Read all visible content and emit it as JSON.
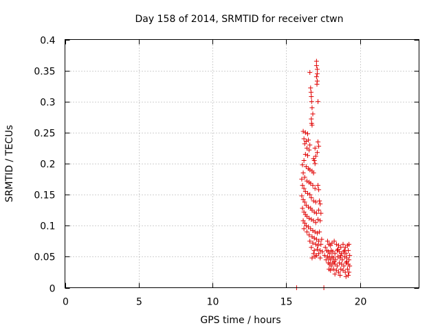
{
  "chart_data": {
    "type": "scatter",
    "title": "Day 158 of 2014, SRMTID for receiver ctwn",
    "xlabel": "GPS time / hours",
    "ylabel": "SRMTID / TECUs",
    "xlim": [
      0,
      24
    ],
    "ylim": [
      0,
      0.4
    ],
    "xticks": [
      0,
      5,
      10,
      15,
      20
    ],
    "yticks": [
      0,
      0.05,
      0.1,
      0.15,
      0.2,
      0.25,
      0.3,
      0.35,
      0.4
    ],
    "ytick_labels": [
      "0",
      "0.05",
      "0.1",
      "0.15",
      "0.2",
      "0.25",
      "0.3",
      "0.35",
      "0.4"
    ],
    "grid": true,
    "marker_color": "#e00000",
    "series": [
      {
        "name": "SRMTID",
        "marker": "plus",
        "points": [
          [
            16.6,
            0.347
          ],
          [
            17.05,
            0.365
          ],
          [
            17.05,
            0.358
          ],
          [
            17.1,
            0.352
          ],
          [
            17.1,
            0.345
          ],
          [
            17.05,
            0.34
          ],
          [
            17.1,
            0.333
          ],
          [
            17.08,
            0.328
          ],
          [
            16.65,
            0.322
          ],
          [
            16.68,
            0.315
          ],
          [
            16.7,
            0.308
          ],
          [
            16.72,
            0.3
          ],
          [
            17.15,
            0.3
          ],
          [
            16.75,
            0.29
          ],
          [
            16.8,
            0.28
          ],
          [
            16.7,
            0.272
          ],
          [
            16.72,
            0.265
          ],
          [
            16.75,
            0.262
          ],
          [
            16.15,
            0.252
          ],
          [
            16.3,
            0.25
          ],
          [
            16.45,
            0.248
          ],
          [
            16.2,
            0.24
          ],
          [
            16.5,
            0.238
          ],
          [
            16.35,
            0.236
          ],
          [
            16.25,
            0.232
          ],
          [
            16.6,
            0.23
          ],
          [
            16.4,
            0.225
          ],
          [
            16.55,
            0.222
          ],
          [
            17.15,
            0.235
          ],
          [
            17.2,
            0.228
          ],
          [
            16.95,
            0.225
          ],
          [
            17.1,
            0.218
          ],
          [
            16.3,
            0.215
          ],
          [
            16.45,
            0.213
          ],
          [
            17.0,
            0.212
          ],
          [
            16.85,
            0.208
          ],
          [
            16.9,
            0.205
          ],
          [
            16.95,
            0.2
          ],
          [
            16.2,
            0.205
          ],
          [
            16.1,
            0.198
          ],
          [
            16.35,
            0.195
          ],
          [
            16.5,
            0.192
          ],
          [
            16.6,
            0.19
          ],
          [
            16.75,
            0.188
          ],
          [
            16.85,
            0.185
          ],
          [
            16.15,
            0.185
          ],
          [
            16.25,
            0.178
          ],
          [
            16.05,
            0.175
          ],
          [
            16.4,
            0.172
          ],
          [
            16.55,
            0.17
          ],
          [
            16.65,
            0.168
          ],
          [
            16.8,
            0.165
          ],
          [
            16.95,
            0.16
          ],
          [
            17.15,
            0.165
          ],
          [
            17.2,
            0.158
          ],
          [
            16.1,
            0.165
          ],
          [
            16.2,
            0.16
          ],
          [
            16.3,
            0.155
          ],
          [
            16.45,
            0.152
          ],
          [
            16.6,
            0.15
          ],
          [
            16.7,
            0.145
          ],
          [
            16.85,
            0.14
          ],
          [
            17.0,
            0.138
          ],
          [
            17.25,
            0.14
          ],
          [
            17.3,
            0.135
          ],
          [
            16.05,
            0.148
          ],
          [
            16.15,
            0.142
          ],
          [
            16.25,
            0.138
          ],
          [
            16.35,
            0.133
          ],
          [
            16.5,
            0.13
          ],
          [
            16.65,
            0.128
          ],
          [
            16.75,
            0.125
          ],
          [
            16.9,
            0.122
          ],
          [
            17.05,
            0.12
          ],
          [
            17.2,
            0.125
          ],
          [
            17.35,
            0.12
          ],
          [
            16.1,
            0.128
          ],
          [
            16.2,
            0.122
          ],
          [
            16.3,
            0.118
          ],
          [
            16.4,
            0.115
          ],
          [
            16.55,
            0.112
          ],
          [
            16.7,
            0.11
          ],
          [
            16.85,
            0.108
          ],
          [
            17.0,
            0.105
          ],
          [
            17.15,
            0.11
          ],
          [
            17.3,
            0.108
          ],
          [
            16.15,
            0.108
          ],
          [
            16.25,
            0.104
          ],
          [
            16.35,
            0.1
          ],
          [
            16.5,
            0.098
          ],
          [
            16.65,
            0.095
          ],
          [
            16.8,
            0.092
          ],
          [
            16.95,
            0.09
          ],
          [
            17.1,
            0.088
          ],
          [
            17.25,
            0.09
          ],
          [
            16.2,
            0.095
          ],
          [
            16.4,
            0.09
          ],
          [
            16.55,
            0.085
          ],
          [
            16.75,
            0.082
          ],
          [
            16.9,
            0.08
          ],
          [
            17.05,
            0.078
          ],
          [
            17.2,
            0.075
          ],
          [
            17.4,
            0.078
          ],
          [
            16.6,
            0.075
          ],
          [
            16.8,
            0.072
          ],
          [
            17.0,
            0.07
          ],
          [
            17.15,
            0.068
          ],
          [
            17.35,
            0.07
          ],
          [
            16.7,
            0.065
          ],
          [
            17.1,
            0.062
          ],
          [
            17.3,
            0.06
          ],
          [
            16.9,
            0.06
          ],
          [
            17.2,
            0.055
          ],
          [
            17.45,
            0.058
          ],
          [
            16.85,
            0.055
          ],
          [
            17.05,
            0.052
          ],
          [
            16.95,
            0.05
          ],
          [
            16.75,
            0.048
          ],
          [
            17.3,
            0.048
          ],
          [
            17.8,
            0.075
          ],
          [
            17.9,
            0.07
          ],
          [
            18.0,
            0.068
          ],
          [
            18.1,
            0.072
          ],
          [
            18.25,
            0.075
          ],
          [
            18.4,
            0.07
          ],
          [
            18.55,
            0.068
          ],
          [
            18.7,
            0.065
          ],
          [
            18.85,
            0.07
          ],
          [
            19.0,
            0.065
          ],
          [
            19.15,
            0.068
          ],
          [
            19.25,
            0.07
          ],
          [
            17.75,
            0.06
          ],
          [
            17.85,
            0.058
          ],
          [
            17.95,
            0.055
          ],
          [
            18.05,
            0.06
          ],
          [
            18.15,
            0.058
          ],
          [
            18.3,
            0.055
          ],
          [
            18.45,
            0.06
          ],
          [
            18.6,
            0.058
          ],
          [
            18.75,
            0.055
          ],
          [
            18.9,
            0.058
          ],
          [
            19.05,
            0.055
          ],
          [
            19.2,
            0.06
          ],
          [
            17.8,
            0.05
          ],
          [
            17.9,
            0.048
          ],
          [
            18.0,
            0.045
          ],
          [
            18.1,
            0.05
          ],
          [
            18.2,
            0.048
          ],
          [
            18.35,
            0.045
          ],
          [
            18.5,
            0.05
          ],
          [
            18.65,
            0.048
          ],
          [
            18.8,
            0.045
          ],
          [
            18.95,
            0.05
          ],
          [
            19.1,
            0.048
          ],
          [
            19.25,
            0.045
          ],
          [
            17.85,
            0.04
          ],
          [
            17.95,
            0.038
          ],
          [
            18.05,
            0.035
          ],
          [
            18.15,
            0.04
          ],
          [
            18.3,
            0.038
          ],
          [
            18.45,
            0.035
          ],
          [
            18.6,
            0.04
          ],
          [
            18.75,
            0.038
          ],
          [
            18.9,
            0.035
          ],
          [
            19.05,
            0.04
          ],
          [
            19.2,
            0.038
          ],
          [
            17.9,
            0.03
          ],
          [
            18.0,
            0.028
          ],
          [
            18.2,
            0.03
          ],
          [
            18.4,
            0.028
          ],
          [
            18.55,
            0.025
          ],
          [
            18.7,
            0.03
          ],
          [
            18.85,
            0.028
          ],
          [
            19.0,
            0.025
          ],
          [
            19.15,
            0.03
          ],
          [
            19.25,
            0.025
          ],
          [
            18.3,
            0.022
          ],
          [
            18.65,
            0.02
          ],
          [
            19.05,
            0.018
          ],
          [
            19.2,
            0.02
          ],
          [
            18.5,
            0.062
          ],
          [
            18.95,
            0.06
          ],
          [
            19.1,
            0.042
          ],
          [
            18.25,
            0.042
          ],
          [
            18.7,
            0.052
          ],
          [
            19.3,
            0.052
          ],
          [
            19.3,
            0.035
          ],
          [
            17.7,
            0.045
          ],
          [
            17.6,
            0.052
          ],
          [
            17.65,
            0.065
          ],
          [
            15.7,
            0.0
          ],
          [
            17.55,
            0.0
          ]
        ]
      }
    ]
  }
}
